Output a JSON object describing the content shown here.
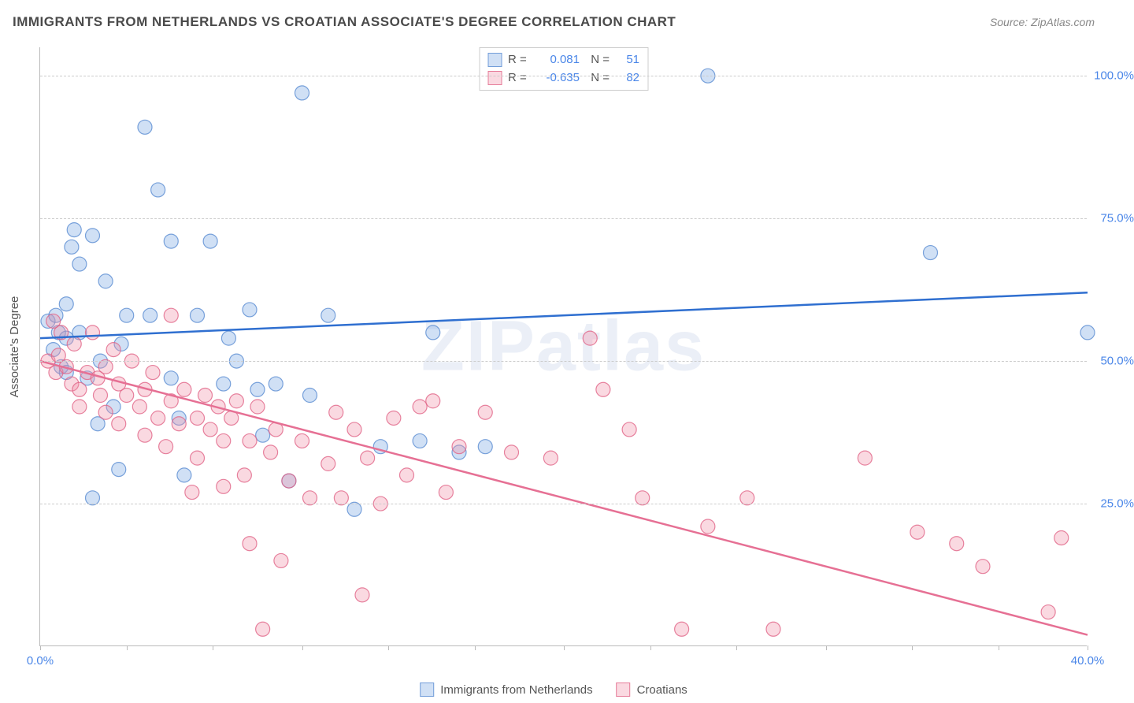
{
  "title": "IMMIGRANTS FROM NETHERLANDS VS CROATIAN ASSOCIATE'S DEGREE CORRELATION CHART",
  "source_prefix": "Source: ",
  "source_name": "ZipAtlas.com",
  "ylabel": "Associate's Degree",
  "watermark": "ZIPatlas",
  "chart": {
    "type": "scatter",
    "xlim": [
      0,
      40
    ],
    "ylim": [
      0,
      105
    ],
    "xtick_positions": [
      0,
      3.3,
      6.6,
      10,
      13.3,
      16.6,
      20,
      23.3,
      26.6,
      30,
      33.3,
      36.6,
      40
    ],
    "xtick_labels": {
      "0": "0.0%",
      "40": "40.0%"
    },
    "ytick_positions": [
      25,
      50,
      75,
      100
    ],
    "ytick_labels": [
      "25.0%",
      "50.0%",
      "75.0%",
      "100.0%"
    ],
    "grid_color": "#cccccc",
    "background_color": "#ffffff",
    "series": [
      {
        "name": "Immigrants from Netherlands",
        "color_fill": "rgba(120,165,225,0.35)",
        "color_stroke": "rgba(90,140,210,0.8)",
        "color_line": "#2f6fd0",
        "marker_radius": 9,
        "R": "0.081",
        "N": "51",
        "trend": {
          "x1": 0,
          "y1": 54,
          "x2": 40,
          "y2": 62
        },
        "points": [
          [
            0.3,
            57
          ],
          [
            0.5,
            52
          ],
          [
            0.6,
            58
          ],
          [
            0.7,
            55
          ],
          [
            0.8,
            49
          ],
          [
            1.0,
            60
          ],
          [
            1.0,
            48
          ],
          [
            1.2,
            70
          ],
          [
            1.3,
            73
          ],
          [
            1.5,
            55
          ],
          [
            1.5,
            67
          ],
          [
            1.8,
            47
          ],
          [
            2.0,
            72
          ],
          [
            2.0,
            26
          ],
          [
            2.2,
            39
          ],
          [
            2.3,
            50
          ],
          [
            2.5,
            64
          ],
          [
            2.8,
            42
          ],
          [
            3.0,
            31
          ],
          [
            3.1,
            53
          ],
          [
            3.3,
            58
          ],
          [
            4.0,
            91
          ],
          [
            4.2,
            58
          ],
          [
            4.5,
            80
          ],
          [
            5.0,
            47
          ],
          [
            5.0,
            71
          ],
          [
            5.3,
            40
          ],
          [
            5.5,
            30
          ],
          [
            6.0,
            58
          ],
          [
            6.5,
            71
          ],
          [
            7.0,
            46
          ],
          [
            7.2,
            54
          ],
          [
            7.5,
            50
          ],
          [
            8.0,
            59
          ],
          [
            8.3,
            45
          ],
          [
            8.5,
            37
          ],
          [
            9.0,
            46
          ],
          [
            9.5,
            29
          ],
          [
            10.0,
            97
          ],
          [
            10.3,
            44
          ],
          [
            11.0,
            58
          ],
          [
            12.0,
            24
          ],
          [
            13.0,
            35
          ],
          [
            14.5,
            36
          ],
          [
            15.0,
            55
          ],
          [
            16.0,
            34
          ],
          [
            17.0,
            35
          ],
          [
            25.5,
            100
          ],
          [
            34.0,
            69
          ],
          [
            40.0,
            55
          ],
          [
            1.0,
            54
          ]
        ]
      },
      {
        "name": "Croatians",
        "color_fill": "rgba(240,145,170,0.35)",
        "color_stroke": "rgba(225,100,135,0.8)",
        "color_line": "#e67094",
        "marker_radius": 9,
        "R": "-0.635",
        "N": "82",
        "trend": {
          "x1": 0,
          "y1": 50,
          "x2": 40,
          "y2": 2
        },
        "points": [
          [
            0.3,
            50
          ],
          [
            0.5,
            57
          ],
          [
            0.6,
            48
          ],
          [
            0.7,
            51
          ],
          [
            0.8,
            55
          ],
          [
            1.0,
            49
          ],
          [
            1.2,
            46
          ],
          [
            1.3,
            53
          ],
          [
            1.5,
            45
          ],
          [
            1.5,
            42
          ],
          [
            1.8,
            48
          ],
          [
            2.0,
            55
          ],
          [
            2.2,
            47
          ],
          [
            2.3,
            44
          ],
          [
            2.5,
            41
          ],
          [
            2.5,
            49
          ],
          [
            2.8,
            52
          ],
          [
            3.0,
            46
          ],
          [
            3.0,
            39
          ],
          [
            3.3,
            44
          ],
          [
            3.5,
            50
          ],
          [
            3.8,
            42
          ],
          [
            4.0,
            37
          ],
          [
            4.0,
            45
          ],
          [
            4.3,
            48
          ],
          [
            4.5,
            40
          ],
          [
            4.8,
            35
          ],
          [
            5.0,
            43
          ],
          [
            5.0,
            58
          ],
          [
            5.3,
            39
          ],
          [
            5.5,
            45
          ],
          [
            5.8,
            27
          ],
          [
            6.0,
            40
          ],
          [
            6.0,
            33
          ],
          [
            6.3,
            44
          ],
          [
            6.5,
            38
          ],
          [
            6.8,
            42
          ],
          [
            7.0,
            36
          ],
          [
            7.0,
            28
          ],
          [
            7.3,
            40
          ],
          [
            7.5,
            43
          ],
          [
            7.8,
            30
          ],
          [
            8.0,
            36
          ],
          [
            8.0,
            18
          ],
          [
            8.3,
            42
          ],
          [
            8.5,
            3
          ],
          [
            8.8,
            34
          ],
          [
            9.0,
            38
          ],
          [
            9.2,
            15
          ],
          [
            9.5,
            29
          ],
          [
            10.0,
            36
          ],
          [
            10.3,
            26
          ],
          [
            11.0,
            32
          ],
          [
            11.3,
            41
          ],
          [
            11.5,
            26
          ],
          [
            12.0,
            38
          ],
          [
            12.3,
            9
          ],
          [
            12.5,
            33
          ],
          [
            13.0,
            25
          ],
          [
            13.5,
            40
          ],
          [
            14.0,
            30
          ],
          [
            14.5,
            42
          ],
          [
            15.0,
            43
          ],
          [
            15.5,
            27
          ],
          [
            16.0,
            35
          ],
          [
            17.0,
            41
          ],
          [
            18.0,
            34
          ],
          [
            19.5,
            33
          ],
          [
            21.0,
            54
          ],
          [
            21.5,
            45
          ],
          [
            22.5,
            38
          ],
          [
            23.0,
            26
          ],
          [
            24.5,
            3
          ],
          [
            25.5,
            21
          ],
          [
            27.0,
            26
          ],
          [
            28.0,
            3
          ],
          [
            31.5,
            33
          ],
          [
            33.5,
            20
          ],
          [
            35.0,
            18
          ],
          [
            36.0,
            14
          ],
          [
            38.5,
            6
          ],
          [
            39.0,
            19
          ]
        ]
      }
    ]
  },
  "legend": {
    "r_label": "R =",
    "n_label": "N ="
  }
}
